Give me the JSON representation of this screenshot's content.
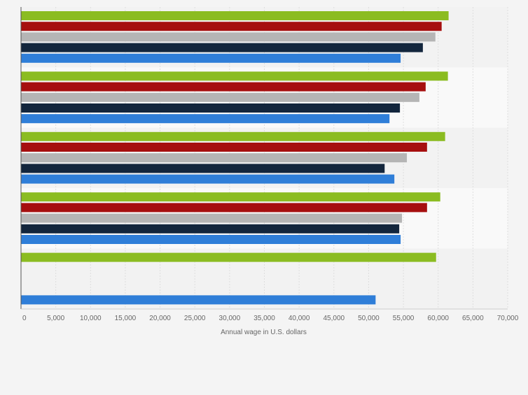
{
  "chart_data": {
    "type": "bar",
    "orientation": "horizontal",
    "title": "",
    "xlabel": "Annual wage in U.S. dollars",
    "ylabel": "",
    "xlim": [
      0,
      70000
    ],
    "xticks": [
      0,
      5000,
      10000,
      15000,
      20000,
      25000,
      30000,
      35000,
      40000,
      45000,
      50000,
      55000,
      60000,
      65000,
      70000
    ],
    "xtick_labels": [
      "0",
      "5,000",
      "10,000",
      "15,000",
      "20,000",
      "25,000",
      "30,000",
      "35,000",
      "40,000",
      "45,000",
      "50,000",
      "55,000",
      "60,000",
      "65,000",
      "70,000"
    ],
    "grid": true,
    "legend": "none",
    "category_count": 5,
    "series": [
      {
        "color": "#8bbc21",
        "values": [
          61500,
          61400,
          61000,
          60300,
          59700
        ]
      },
      {
        "color": "#a60f0f",
        "values": [
          60500,
          58200,
          58400,
          58400,
          null
        ]
      },
      {
        "color": "#b5b5b5",
        "values": [
          59600,
          57300,
          55500,
          54800,
          null
        ]
      },
      {
        "color": "#13263d",
        "values": [
          57800,
          54500,
          52300,
          54400,
          null
        ]
      },
      {
        "color": "#2f7ed8",
        "values": [
          54600,
          53000,
          53700,
          54600,
          51000
        ]
      }
    ]
  }
}
